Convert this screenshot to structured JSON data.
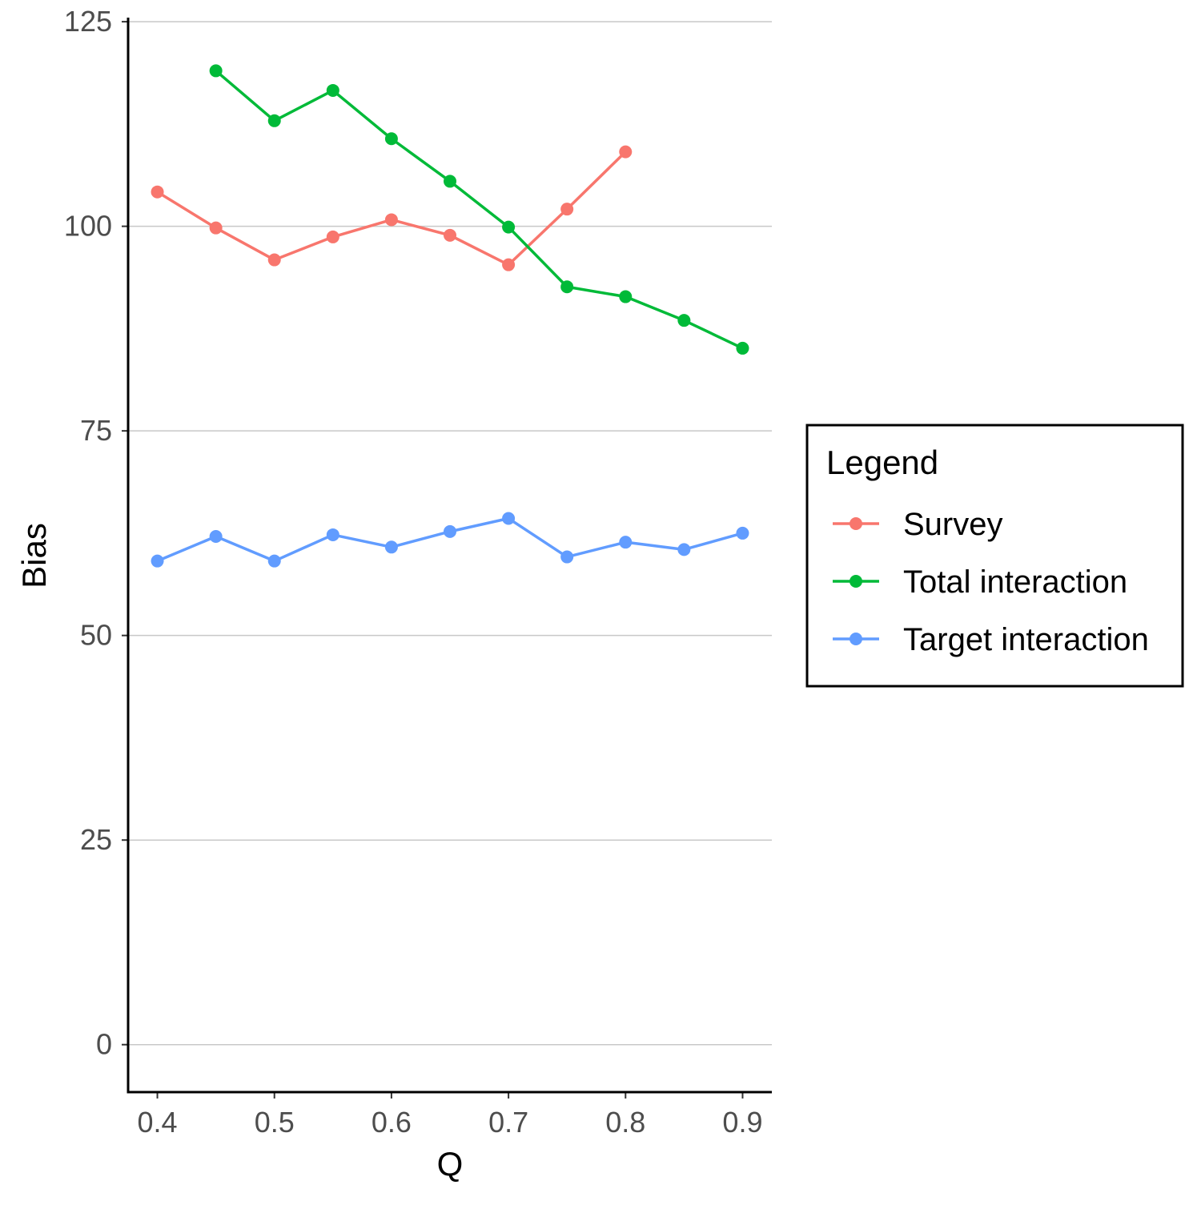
{
  "chart_data": {
    "type": "line",
    "title": "",
    "xlabel": "Q",
    "ylabel": "Bias",
    "xlim": [
      0.375,
      0.925
    ],
    "ylim": [
      -5.8,
      125.5
    ],
    "x_ticks": [
      0.4,
      0.5,
      0.6,
      0.7,
      0.8,
      0.9
    ],
    "x_tick_labels": [
      "0.4",
      "0.5",
      "0.6",
      "0.7",
      "0.8",
      "0.9"
    ],
    "y_ticks": [
      0,
      25,
      50,
      75,
      100,
      125
    ],
    "y_tick_labels": [
      "0",
      "25",
      "50",
      "75",
      "100",
      "125"
    ],
    "grid": "horizontal-major",
    "legend": {
      "title": "Legend",
      "placement": "right"
    },
    "series": [
      {
        "name": "Survey",
        "color": "#F8766D",
        "x": [
          0.4,
          0.45,
          0.5,
          0.55,
          0.6,
          0.65,
          0.7,
          0.75,
          0.8
        ],
        "values": [
          104.2,
          99.8,
          95.9,
          98.7,
          100.8,
          98.9,
          95.3,
          102.1,
          109.1
        ]
      },
      {
        "name": "Total interaction",
        "color": "#00BA38",
        "x": [
          0.45,
          0.5,
          0.55,
          0.6,
          0.65,
          0.7,
          0.75,
          0.8,
          0.85,
          0.9
        ],
        "values": [
          119.0,
          112.9,
          116.6,
          110.7,
          105.5,
          99.9,
          92.6,
          91.4,
          88.5,
          85.1
        ]
      },
      {
        "name": "Target interaction",
        "color": "#619CFF",
        "x": [
          0.4,
          0.45,
          0.5,
          0.55,
          0.6,
          0.65,
          0.7,
          0.75,
          0.8,
          0.85,
          0.9
        ],
        "values": [
          59.1,
          62.1,
          59.1,
          62.3,
          60.8,
          62.7,
          64.3,
          59.6,
          61.4,
          60.5,
          62.5
        ]
      }
    ]
  }
}
